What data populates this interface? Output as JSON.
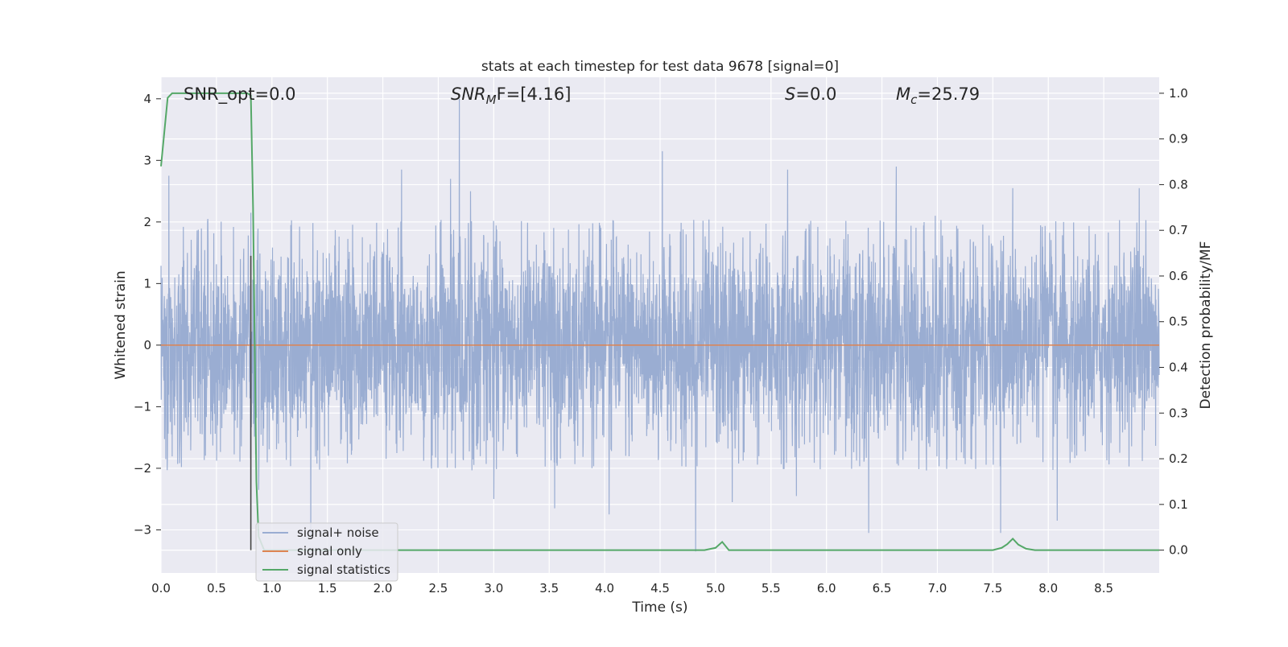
{
  "chart_data": {
    "type": "line",
    "title": "stats at each timestep for test data 9678 [signal=0]",
    "xlabel": "Time (s)",
    "ylabel_left": "Whitened strain",
    "ylabel_right": "Detection probability/MF",
    "xlim": [
      0.0,
      9.0
    ],
    "ylim_left": [
      -3.7,
      4.35
    ],
    "ylim_right": [
      -0.05,
      1.035
    ],
    "x_ticks": [
      "0.0",
      "0.5",
      "1.0",
      "1.5",
      "2.0",
      "2.5",
      "3.0",
      "3.5",
      "4.0",
      "4.5",
      "5.0",
      "5.5",
      "6.0",
      "6.5",
      "7.0",
      "7.5",
      "8.0",
      "8.5"
    ],
    "y_left_ticks": [
      "−3",
      "−2",
      "−1",
      "0",
      "1",
      "2",
      "3",
      "4"
    ],
    "y_right_ticks": [
      "0.0",
      "0.1",
      "0.2",
      "0.3",
      "0.4",
      "0.5",
      "0.6",
      "0.7",
      "0.8",
      "0.9",
      "1.0"
    ],
    "grid": true,
    "legend_position": "lower-left",
    "annotations": {
      "snr_opt": "SNR_opt=0.0",
      "snr_mf_main": "SNR",
      "snr_mf_sub": "M",
      "snr_mf_rest": "F=[4.16]",
      "s_main": "S",
      "s_rest": "=0.0",
      "mc_main": "M",
      "mc_sub": "c",
      "mc_rest": "=25.79"
    },
    "vertical_marker_x": 0.81,
    "series": [
      {
        "name": "signal+ noise",
        "color": "#9aadd2",
        "axis": "left",
        "description_values": {
          "typical_amplitude": 1.2,
          "sampling_hz": 512,
          "peaks": [
            [
              0.07,
              2.75
            ],
            [
              0.42,
              2.0
            ],
            [
              0.81,
              2.15
            ],
            [
              0.88,
              -2.35
            ],
            [
              1.17,
              1.95
            ],
            [
              1.35,
              -3.15
            ],
            [
              2.17,
              2.85
            ],
            [
              2.69,
              4.0
            ],
            [
              2.61,
              2.7
            ],
            [
              2.79,
              2.5
            ],
            [
              3.0,
              -2.5
            ],
            [
              3.55,
              -2.65
            ],
            [
              4.04,
              -2.75
            ],
            [
              4.52,
              3.15
            ],
            [
              4.82,
              -3.35
            ],
            [
              5.15,
              -2.55
            ],
            [
              5.65,
              2.85
            ],
            [
              5.73,
              -2.45
            ],
            [
              6.38,
              -3.05
            ],
            [
              6.63,
              2.9
            ],
            [
              6.98,
              2.1
            ],
            [
              7.57,
              -3.05
            ],
            [
              7.68,
              2.55
            ],
            [
              8.08,
              -2.85
            ],
            [
              8.82,
              2.55
            ]
          ]
        }
      },
      {
        "name": "signal only",
        "color": "#dd8452",
        "axis": "left",
        "values_constant": 0.0
      },
      {
        "name": "signal statistics",
        "color": "#55a868",
        "axis": "right",
        "points": [
          [
            0.0,
            0.84
          ],
          [
            0.06,
            0.99
          ],
          [
            0.1,
            1.0
          ],
          [
            0.78,
            1.0
          ],
          [
            0.81,
            0.995
          ],
          [
            0.83,
            0.75
          ],
          [
            0.86,
            0.15
          ],
          [
            0.88,
            0.03
          ],
          [
            0.93,
            0.0
          ],
          [
            4.9,
            0.0
          ],
          [
            5.0,
            0.005
          ],
          [
            5.06,
            0.018
          ],
          [
            5.12,
            0.0
          ],
          [
            7.5,
            0.0
          ],
          [
            7.58,
            0.005
          ],
          [
            7.63,
            0.013
          ],
          [
            7.68,
            0.025
          ],
          [
            7.73,
            0.012
          ],
          [
            7.8,
            0.003
          ],
          [
            7.88,
            0.0
          ],
          [
            9.0,
            0.0
          ]
        ]
      }
    ]
  }
}
